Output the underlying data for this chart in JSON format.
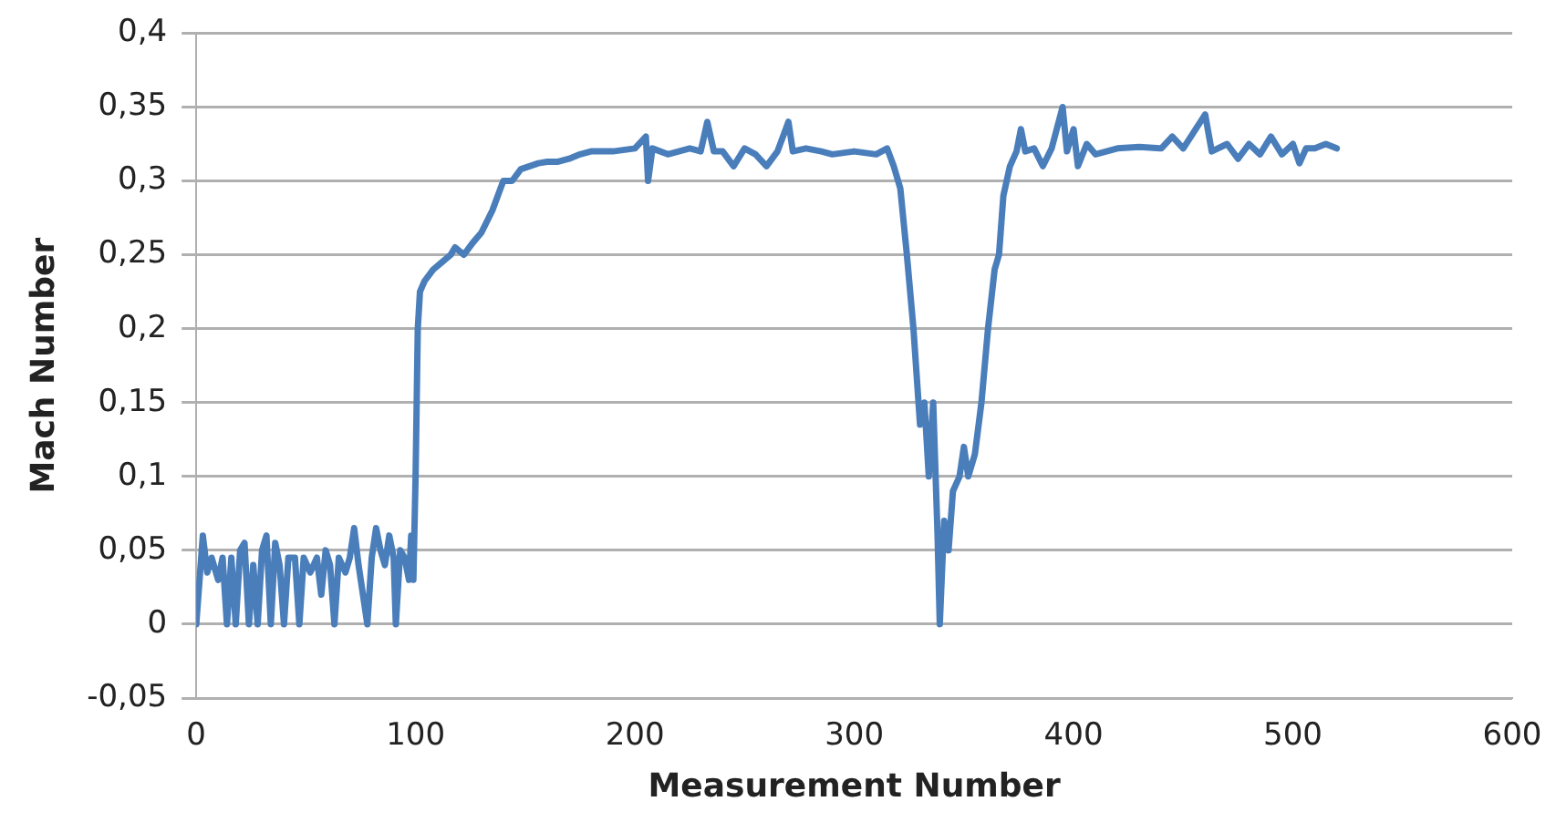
{
  "chart_data": {
    "type": "line",
    "xlabel": "Measurement Number",
    "ylabel": "Mach Number",
    "xlim": [
      0,
      600
    ],
    "xticks": [
      0,
      100,
      200,
      300,
      400,
      500,
      600
    ],
    "ylim": [
      -0.05,
      0.4
    ],
    "yticks": [
      {
        "value": -0.05,
        "label": "-0,05"
      },
      {
        "value": 0,
        "label": "0"
      },
      {
        "value": 0.05,
        "label": "0,05"
      },
      {
        "value": 0.1,
        "label": "0,1"
      },
      {
        "value": 0.15,
        "label": "0,15"
      },
      {
        "value": 0.2,
        "label": "0,2"
      },
      {
        "value": 0.25,
        "label": "0,25"
      },
      {
        "value": 0.3,
        "label": "0,3"
      },
      {
        "value": 0.35,
        "label": "0,35"
      },
      {
        "value": 0.4,
        "label": "0,4"
      }
    ],
    "grid": "y",
    "legend": false,
    "marker": "none",
    "line_style": "solid",
    "series": [
      {
        "color": "#4a7ebb",
        "x": [
          0,
          2,
          3,
          5,
          7,
          10,
          12,
          14,
          16,
          18,
          20,
          22,
          24,
          26,
          28,
          30,
          32,
          34,
          36,
          38,
          40,
          42,
          45,
          47,
          49,
          52,
          55,
          57,
          59,
          61,
          63,
          65,
          68,
          70,
          72,
          74,
          76,
          78,
          80,
          82,
          84,
          86,
          88,
          90,
          91,
          93,
          95,
          97,
          98,
          99,
          100,
          101,
          102,
          104,
          108,
          112,
          116,
          118,
          122,
          126,
          130,
          135,
          140,
          144,
          148,
          152,
          156,
          160,
          165,
          170,
          175,
          180,
          190,
          200,
          205,
          206,
          208,
          215,
          220,
          225,
          230,
          233,
          236,
          240,
          245,
          250,
          255,
          260,
          265,
          270,
          272,
          278,
          285,
          290,
          300,
          310,
          315,
          318,
          321,
          324,
          327,
          330,
          332,
          334,
          336,
          338,
          339,
          341,
          343,
          345,
          348,
          350,
          352,
          355,
          358,
          361,
          364,
          366,
          368,
          371,
          374,
          376,
          378,
          382,
          386,
          390,
          395,
          397,
          400,
          402,
          406,
          410,
          420,
          430,
          440,
          445,
          450,
          460,
          463,
          470,
          475,
          480,
          485,
          490,
          495,
          500,
          503,
          506,
          510,
          515,
          520
        ],
        "values": [
          0,
          0.04,
          0.06,
          0.035,
          0.045,
          0.03,
          0.045,
          0,
          0.045,
          0,
          0.05,
          0.055,
          0,
          0.04,
          0,
          0.05,
          0.06,
          0,
          0.055,
          0.04,
          0,
          0.045,
          0.045,
          0,
          0.045,
          0.035,
          0.045,
          0.02,
          0.05,
          0.04,
          0,
          0.045,
          0.035,
          0.045,
          0.065,
          0.04,
          0.02,
          0,
          0.045,
          0.065,
          0.05,
          0.04,
          0.06,
          0.045,
          0,
          0.05,
          0.045,
          0.03,
          0.06,
          0.03,
          0.1,
          0.2,
          0.225,
          0.232,
          0.24,
          0.245,
          0.25,
          0.255,
          0.25,
          0.258,
          0.265,
          0.28,
          0.3,
          0.3,
          0.308,
          0.31,
          0.312,
          0.313,
          0.313,
          0.315,
          0.318,
          0.32,
          0.32,
          0.322,
          0.33,
          0.3,
          0.322,
          0.318,
          0.32,
          0.322,
          0.32,
          0.34,
          0.32,
          0.32,
          0.31,
          0.322,
          0.318,
          0.31,
          0.32,
          0.34,
          0.32,
          0.322,
          0.32,
          0.318,
          0.32,
          0.318,
          0.322,
          0.31,
          0.295,
          0.25,
          0.2,
          0.135,
          0.15,
          0.1,
          0.15,
          0.06,
          0,
          0.07,
          0.05,
          0.09,
          0.1,
          0.12,
          0.1,
          0.115,
          0.15,
          0.2,
          0.24,
          0.25,
          0.29,
          0.31,
          0.32,
          0.335,
          0.32,
          0.322,
          0.31,
          0.322,
          0.35,
          0.32,
          0.335,
          0.31,
          0.325,
          0.318,
          0.322,
          0.323,
          0.322,
          0.33,
          0.322,
          0.345,
          0.32,
          0.325,
          0.315,
          0.325,
          0.318,
          0.33,
          0.318,
          0.325,
          0.312,
          0.322,
          0.322,
          0.325,
          0.322
        ]
      }
    ]
  }
}
